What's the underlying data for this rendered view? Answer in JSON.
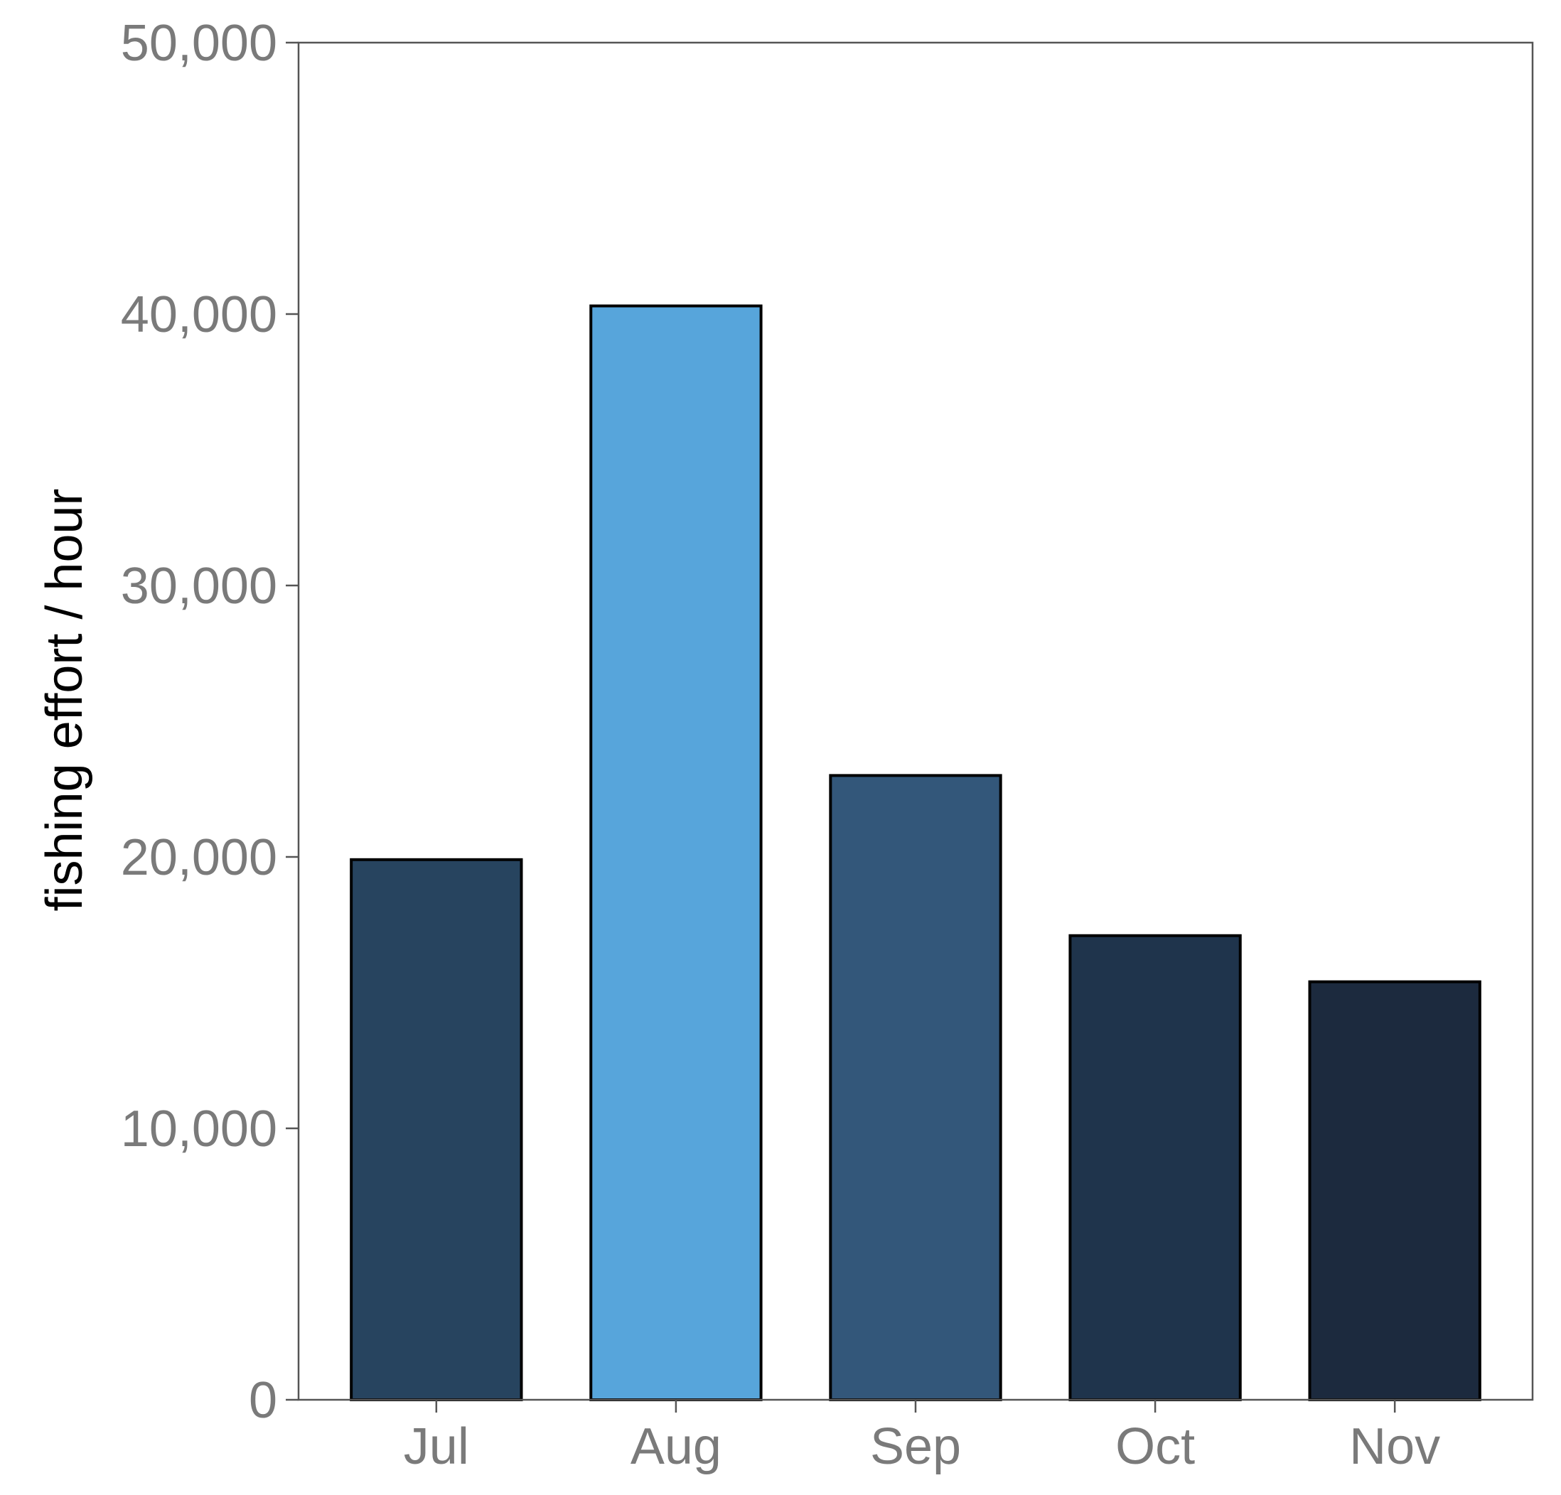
{
  "chart_data": {
    "type": "bar",
    "categories": [
      "Jul",
      "Aug",
      "Sep",
      "Oct",
      "Nov"
    ],
    "values": [
      19900,
      40300,
      23000,
      17100,
      15400
    ],
    "colors": [
      "#27445f",
      "#57a5db",
      "#33577a",
      "#1f344c",
      "#1c2a3e"
    ],
    "title": "",
    "xlabel": "",
    "ylabel": "fishing effort / hour",
    "ylim": [
      0,
      50000
    ],
    "yticks": [
      0,
      10000,
      20000,
      30000,
      40000,
      50000
    ],
    "ytick_labels": [
      "0",
      "10,000",
      "20,000",
      "30,000",
      "40,000",
      "50,000"
    ],
    "grid": false,
    "legend": "none",
    "bar_outline_color": "#000000",
    "axis_color": "#555555",
    "tick_label_color": "#7a7a7a"
  }
}
